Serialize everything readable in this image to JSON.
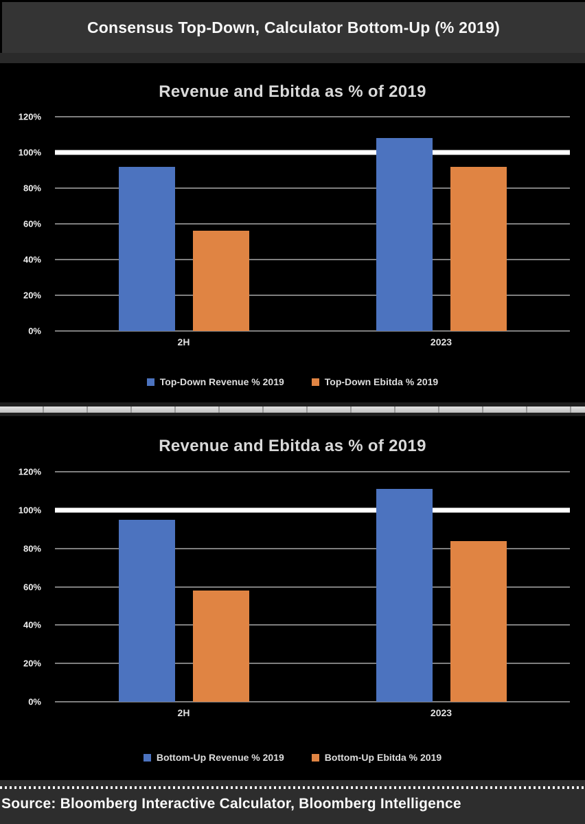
{
  "header": {
    "title": "Consensus Top-Down, Calculator Bottom-Up (% 2019)"
  },
  "footer": {
    "source": "Source: Bloomberg Interactive Calculator, Bloomberg Intelligence"
  },
  "colors": {
    "page_background": "#2a2a2a",
    "panel_background": "#000000",
    "header_band": "#343434",
    "gridline": "#7f7f7f",
    "reference_line": "#ffffff",
    "bar_blue": "#4C73BF",
    "bar_orange": "#E08443"
  },
  "chart_data": [
    {
      "type": "bar",
      "title": "Revenue and Ebitda as % of 2019",
      "categories": [
        "2H",
        "2023"
      ],
      "series": [
        {
          "name": "Top-Down Revenue % 2019",
          "color": "#4C73BF",
          "values": [
            92,
            108
          ]
        },
        {
          "name": "Top-Down Ebitda % 2019",
          "color": "#E08443",
          "values": [
            56,
            92
          ]
        }
      ],
      "ylim": [
        0,
        120
      ],
      "yticks": [
        "0%",
        "20%",
        "40%",
        "60%",
        "80%",
        "100%",
        "120%"
      ],
      "reference_line": 100,
      "grid": true,
      "legend_position": "bottom"
    },
    {
      "type": "bar",
      "title": "Revenue and Ebitda as % of 2019",
      "categories": [
        "2H",
        "2023"
      ],
      "series": [
        {
          "name": "Bottom-Up Revenue % 2019",
          "color": "#4C73BF",
          "values": [
            95,
            111
          ]
        },
        {
          "name": "Bottom-Up Ebitda % 2019",
          "color": "#E08443",
          "values": [
            58,
            84
          ]
        }
      ],
      "ylim": [
        0,
        120
      ],
      "yticks": [
        "0%",
        "20%",
        "40%",
        "60%",
        "80%",
        "100%",
        "120%"
      ],
      "reference_line": 100,
      "grid": true,
      "legend_position": "bottom"
    }
  ]
}
